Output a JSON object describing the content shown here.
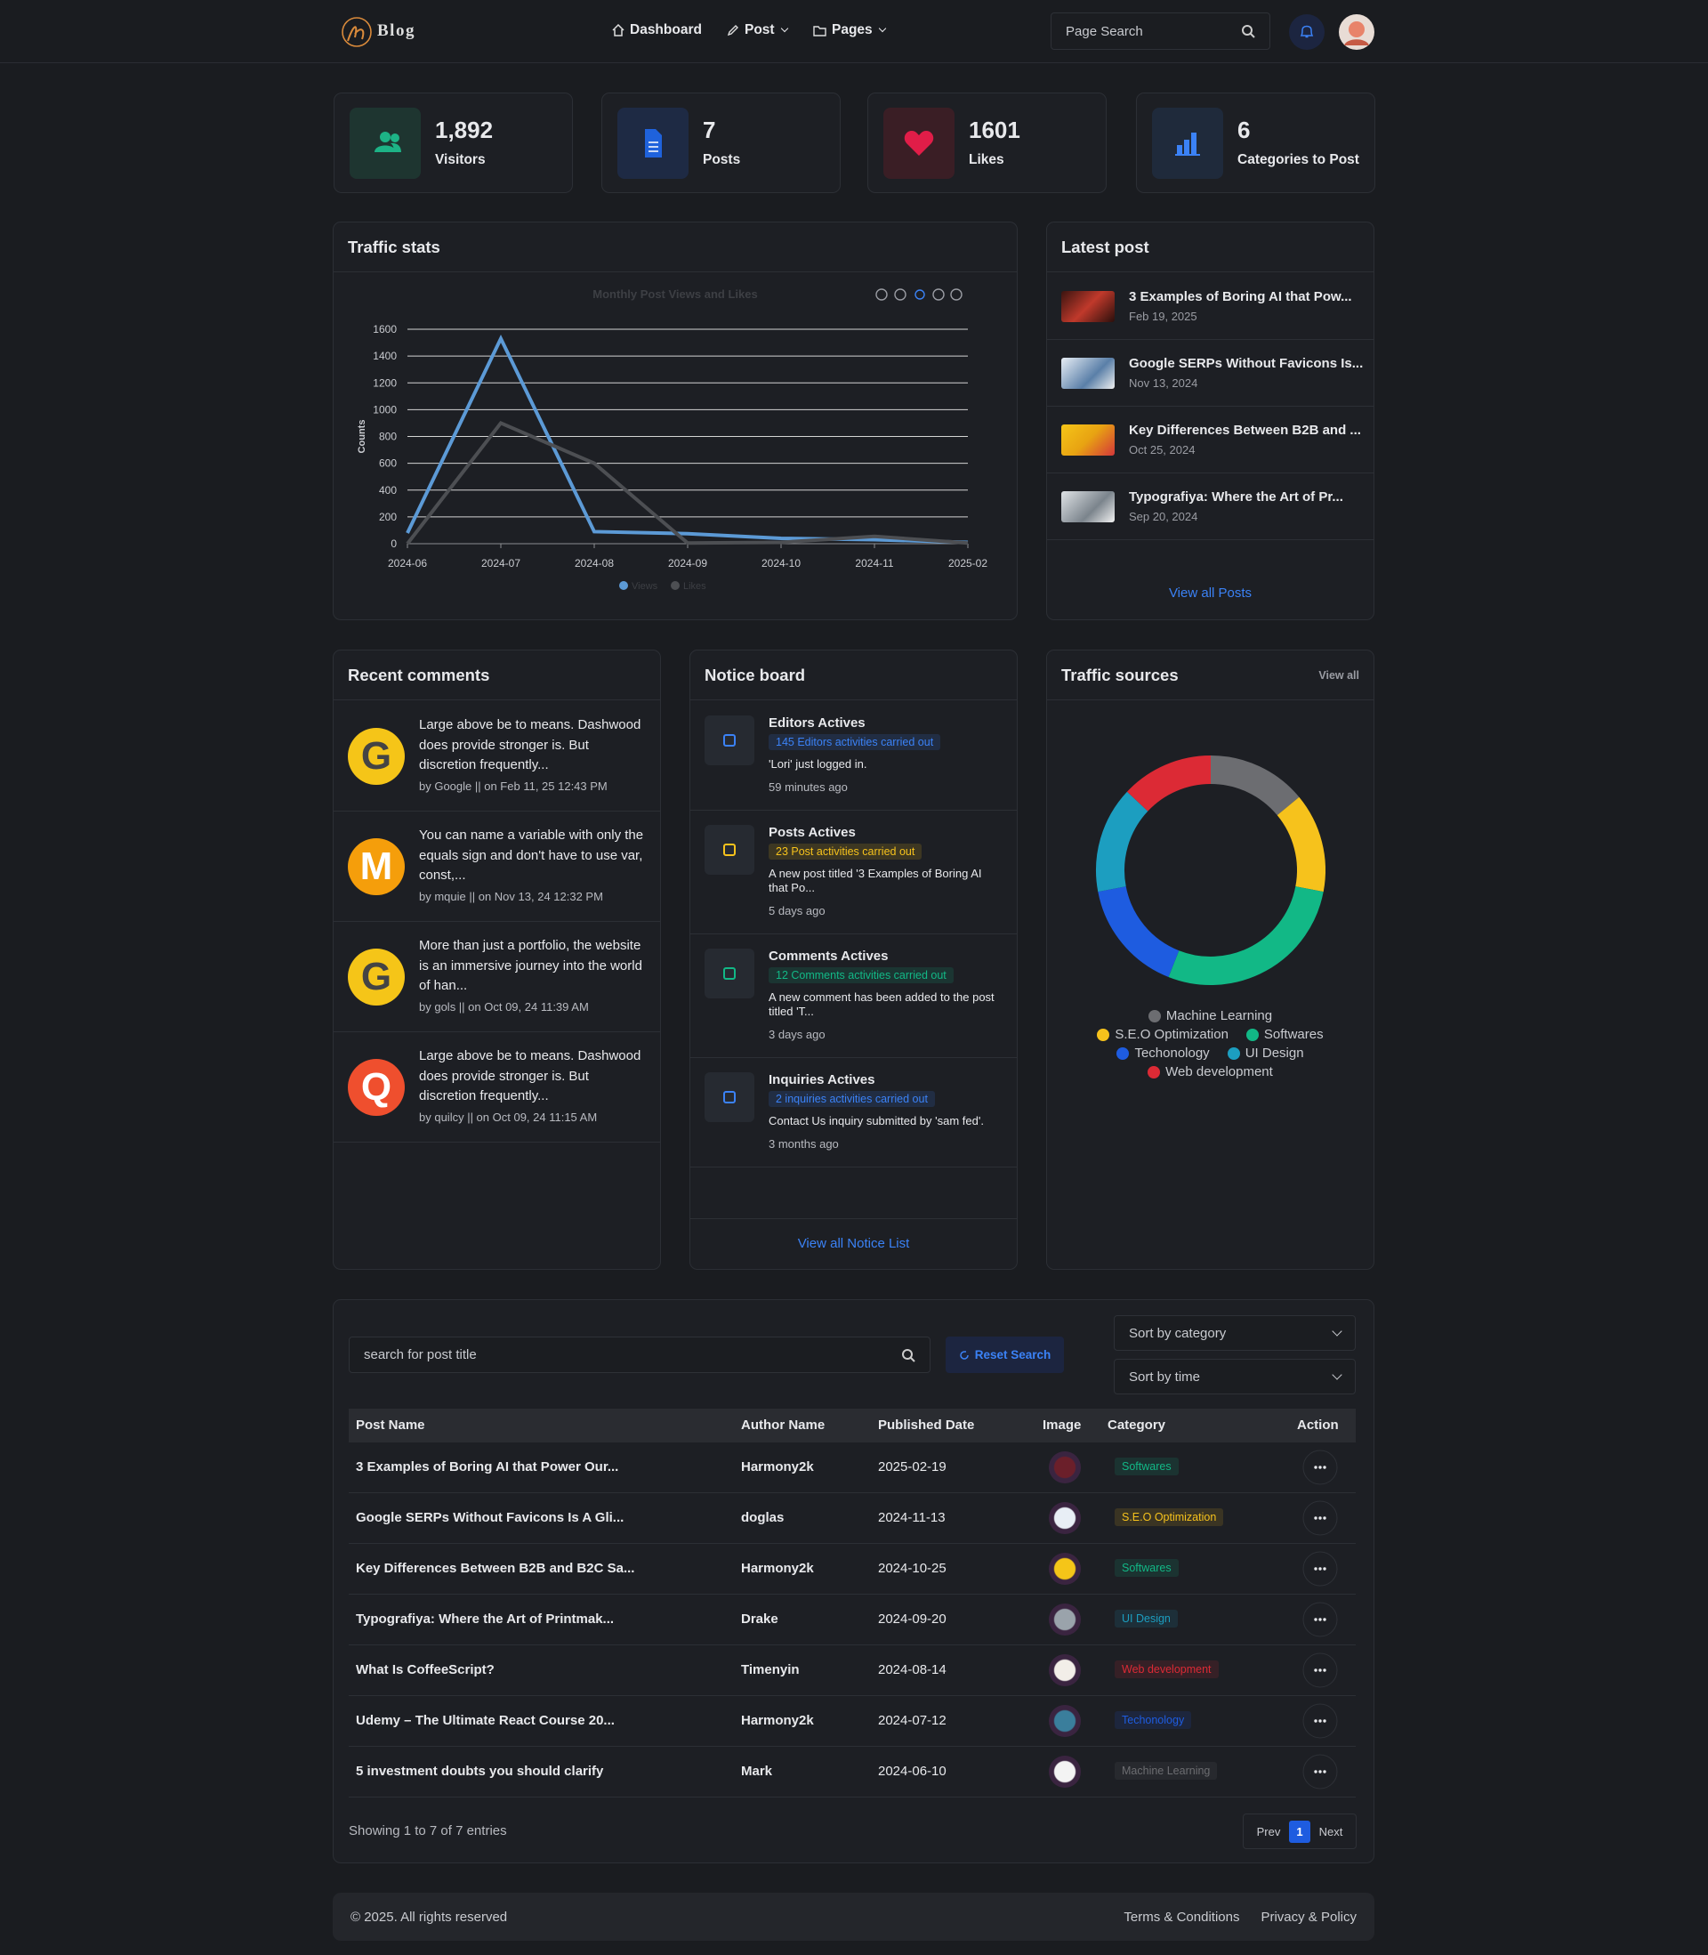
{
  "header": {
    "logo": "Blog",
    "nav": [
      "Dashboard",
      "Post",
      "Pages"
    ],
    "search_placeholder": "Page Search"
  },
  "stats": [
    {
      "value": "1,892",
      "label": "Visitors"
    },
    {
      "value": "7",
      "label": "Posts"
    },
    {
      "value": "1601",
      "label": "Likes"
    },
    {
      "value": "6",
      "label": "Categories to Post"
    }
  ],
  "traffic_stats": {
    "title": "Traffic stats"
  },
  "chart_data": [
    {
      "type": "line",
      "title": "Monthly Post Views and Likes",
      "y_label": "Counts",
      "categories": [
        "2024-06",
        "2024-07",
        "2024-08",
        "2024-09",
        "2024-10",
        "2024-11",
        "2025-02"
      ],
      "series": [
        {
          "name": "Views",
          "color": "#5c9ad6",
          "values": [
            80,
            1530,
            90,
            75,
            40,
            30,
            10
          ]
        },
        {
          "name": "Likes",
          "color": "#4d4f53",
          "values": [
            0,
            900,
            600,
            5,
            10,
            55,
            5
          ]
        }
      ],
      "ylim": [
        0,
        1600
      ],
      "yticks": [
        0,
        200,
        400,
        600,
        800,
        1000,
        1200,
        1400,
        1600
      ],
      "grid": true
    },
    {
      "type": "donut",
      "title": "Traffic sources",
      "categories": [
        "Machine Learning",
        "S.E.O Optimization",
        "Softwares",
        "Techonology",
        "UI Design",
        "Web development"
      ],
      "values": [
        14,
        14,
        28,
        16,
        15,
        13
      ],
      "colors": [
        "#6c6d71",
        "#f6c21c",
        "#12b886",
        "#1e5ce0",
        "#1c9ec0",
        "#dc2a35"
      ]
    }
  ],
  "latest_post": {
    "title": "Latest post",
    "items": [
      {
        "title": "3 Examples of Boring AI that Pow...",
        "date": "Feb 19, 2025"
      },
      {
        "title": "Google SERPs Without Favicons Is...",
        "date": "Nov 13, 2024"
      },
      {
        "title": "Key Differences Between B2B and ...",
        "date": "Oct 25, 2024"
      },
      {
        "title": "Typografiya: Where the Art of Pr...",
        "date": "Sep 20, 2024"
      }
    ],
    "view_all": "View all Posts"
  },
  "recent_comments": {
    "title": "Recent comments",
    "items": [
      {
        "avatar": "G",
        "text": "Large above be to means. Dashwood does provide stronger is. But discretion frequently...",
        "meta": "by Google || on Feb 11, 25 12:43 PM"
      },
      {
        "avatar": "M",
        "text": "You can name a variable with only the equals sign and don't have to use var, const,...",
        "meta": "by mquie || on Nov 13, 24 12:32 PM"
      },
      {
        "avatar": "G",
        "text": "More than just a portfolio, the website is an immersive journey into the world of han...",
        "meta": "by gols || on Oct 09, 24 11:39 AM"
      },
      {
        "avatar": "Q",
        "text": "Large above be to means. Dashwood does provide stronger is. But discretion frequently...",
        "meta": "by quilcy || on Oct 09, 24 11:15 AM"
      }
    ]
  },
  "notice_board": {
    "title": "Notice board",
    "items": [
      {
        "title": "Editors Actives",
        "badge": "145 Editors activities carried out",
        "text": "'Lori' just logged in.",
        "time": "59 minutes ago",
        "color": "#3b82f6"
      },
      {
        "title": "Posts Actives",
        "badge": "23 Post activities carried out",
        "text": "A new post titled '3 Examples of Boring AI that Po...",
        "time": "5 days ago",
        "color": "#f6c21c"
      },
      {
        "title": "Comments Actives",
        "badge": "12 Comments activities carried out",
        "text": "A new comment has been added to the post titled 'T...",
        "time": "3 days ago",
        "color": "#12b886"
      },
      {
        "title": "Inquiries Actives",
        "badge": "2 inquiries activities carried out",
        "text": "Contact Us inquiry submitted by 'sam fed'.",
        "time": "3 months ago",
        "color": "#3b82f6"
      }
    ],
    "view_all": "View all Notice List"
  },
  "traffic_sources": {
    "view_all": "View all"
  },
  "posts_table": {
    "search_placeholder": "search for post title",
    "reset": "Reset Search",
    "sort_category": "Sort by category",
    "sort_time": "Sort by time",
    "columns": [
      "Post Name",
      "Author Name",
      "Published Date",
      "Image",
      "Category",
      "Action"
    ],
    "rows": [
      {
        "name": "3 Examples of Boring AI that Power Our...",
        "author": "Harmony2k",
        "date": "2025-02-19",
        "category": "Softwares"
      },
      {
        "name": "Google SERPs Without Favicons Is A Gli...",
        "author": "doglas",
        "date": "2024-11-13",
        "category": "S.E.O Optimization"
      },
      {
        "name": "Key Differences Between B2B and B2C Sa...",
        "author": "Harmony2k",
        "date": "2024-10-25",
        "category": "Softwares"
      },
      {
        "name": "Typografiya: Where the Art of Printmak...",
        "author": "Drake",
        "date": "2024-09-20",
        "category": "UI Design"
      },
      {
        "name": "What Is CoffeeScript?",
        "author": "Timenyin",
        "date": "2024-08-14",
        "category": "Web development"
      },
      {
        "name": "Udemy – The Ultimate React Course 20...",
        "author": "Harmony2k",
        "date": "2024-07-12",
        "category": "Techonology"
      },
      {
        "name": "5 investment doubts you should clarify",
        "author": "Mark",
        "date": "2024-06-10",
        "category": "Machine Learning"
      }
    ],
    "info": "Showing 1 to 7 of 7 entries",
    "pagination": [
      "Prev",
      "1",
      "Next"
    ]
  },
  "footer": {
    "copyright": "© 2025. All rights reserved",
    "links": [
      "Terms & Conditions",
      "Privacy & Policy"
    ]
  }
}
